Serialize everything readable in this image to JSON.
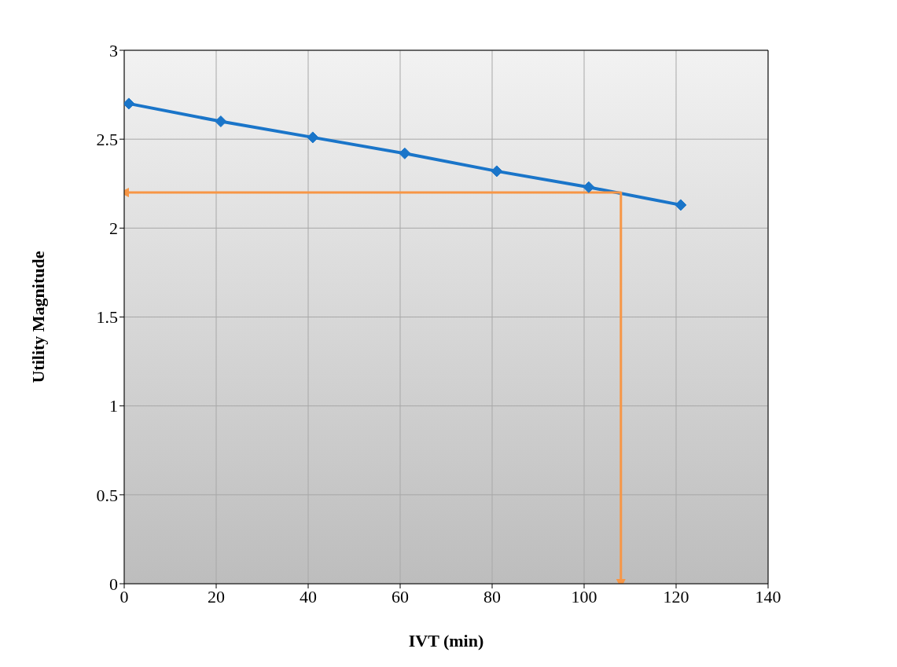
{
  "chart_data": {
    "type": "line",
    "xlabel": "IVT (min)",
    "ylabel": "Utility Magnitude",
    "series": [
      {
        "x": [
          1,
          21,
          41,
          61,
          81,
          101,
          121
        ],
        "values": [
          2.7,
          2.6,
          2.51,
          2.42,
          2.32,
          2.23,
          2.13
        ],
        "color": "#1a75c9"
      },
      {
        "x": [
          0,
          108,
          108
        ],
        "values": [
          2.2,
          2.2,
          0
        ],
        "color": "#f79646",
        "marker": "none"
      }
    ],
    "xlim": [
      0,
      140
    ],
    "xticks": [
      0,
      20,
      40,
      60,
      80,
      100,
      120,
      140
    ],
    "ylim": [
      0,
      3
    ],
    "yticks": [
      0,
      0.5,
      1,
      1.5,
      2,
      2.5,
      3
    ],
    "grid": true,
    "marker": "diamond",
    "line_style": "solid"
  }
}
